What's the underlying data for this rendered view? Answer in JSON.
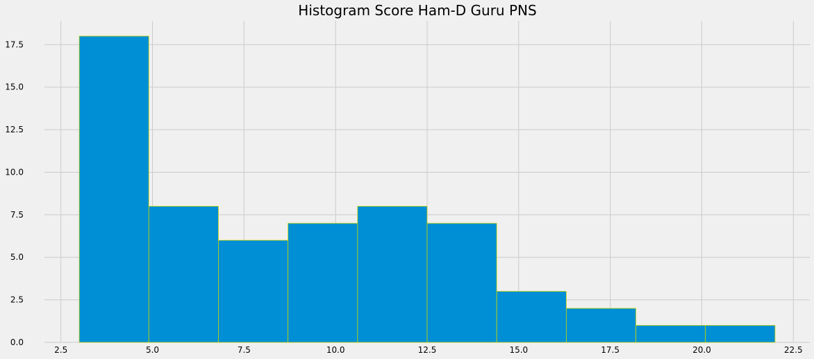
{
  "chart_data": {
    "type": "bar",
    "title": "Histogram Score Ham-D Guru PNS",
    "xlabel": "",
    "ylabel": "",
    "bin_edges": [
      3.0,
      4.9,
      6.8,
      8.7,
      10.6,
      12.5,
      14.4,
      16.3,
      18.2,
      20.1,
      22.0
    ],
    "values": [
      18,
      8,
      6,
      7,
      8,
      7,
      3,
      2,
      1,
      1
    ],
    "xlim": [
      2.05,
      22.95
    ],
    "ylim": [
      0,
      18.9
    ],
    "x_ticks": [
      "2.5",
      "5.0",
      "7.5",
      "10.0",
      "12.5",
      "15.0",
      "17.5",
      "20.0",
      "22.5"
    ],
    "y_ticks": [
      "0.0",
      "2.5",
      "5.0",
      "7.5",
      "10.0",
      "12.5",
      "15.0",
      "17.5"
    ],
    "grid": true,
    "colors": {
      "bar": "#008fd5",
      "edge": "#c8d400",
      "background": "#f0f0f0",
      "grid": "#cbcbcb"
    }
  }
}
